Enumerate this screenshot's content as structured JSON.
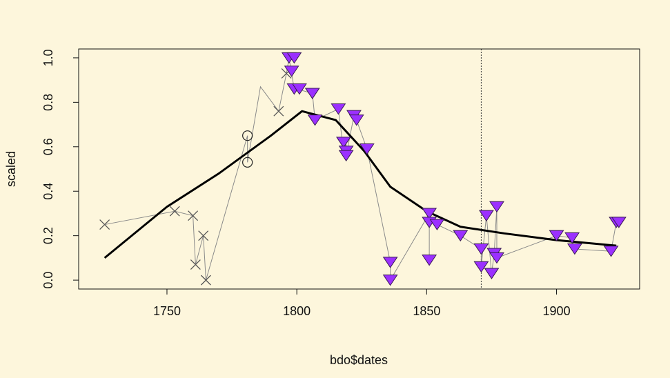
{
  "colors": {
    "background": "#fdf6dc",
    "purple_fill": "#9b30ff",
    "purple_stroke": "#3a1a55",
    "marker_gray": "#555555",
    "thin_line": "#8a8a8a",
    "smooth_line": "#000000"
  },
  "chart_data": {
    "type": "scatter",
    "xlabel": "bdo$dates",
    "ylabel": "scaled",
    "xlim": [
      1716,
      1932
    ],
    "ylim": [
      -0.04,
      1.04
    ],
    "x_ticks": [
      "1750",
      "1800",
      "1850",
      "1900"
    ],
    "x_tick_values": [
      1750,
      1800,
      1850,
      1900
    ],
    "y_ticks": [
      "0.0",
      "0.2",
      "0.4",
      "0.6",
      "0.8",
      "1.0"
    ],
    "y_tick_values": [
      0,
      0.2,
      0.4,
      0.6,
      0.8,
      1.0
    ],
    "grid": false,
    "vline_x": 1871,
    "thin_line_path": [
      [
        1726,
        0.25
      ],
      [
        1753,
        0.31
      ],
      [
        1760,
        0.29
      ],
      [
        1761,
        0.07
      ],
      [
        1764,
        0.2
      ],
      [
        1765,
        0.0
      ],
      [
        1781,
        0.65
      ],
      [
        1781,
        0.53
      ],
      [
        1786,
        0.87
      ],
      [
        1793,
        0.76
      ],
      [
        1796,
        0.93
      ],
      [
        1797,
        1.0
      ],
      [
        1799,
        0.86
      ],
      [
        1800,
        0.86
      ],
      [
        1806,
        0.84
      ],
      [
        1807,
        0.72
      ],
      [
        1816,
        0.77
      ],
      [
        1818,
        0.58
      ],
      [
        1819,
        0.61
      ],
      [
        1819,
        0.56
      ],
      [
        1822,
        0.74
      ],
      [
        1823,
        0.72
      ],
      [
        1827,
        0.59
      ],
      [
        1836,
        0.08
      ],
      [
        1836,
        0.0
      ],
      [
        1851,
        0.3
      ],
      [
        1851,
        0.09
      ],
      [
        1851,
        0.26
      ],
      [
        1854,
        0.25
      ],
      [
        1863,
        0.2
      ],
      [
        1871,
        0.14
      ],
      [
        1871,
        0.06
      ],
      [
        1873,
        0.29
      ],
      [
        1875,
        0.03
      ],
      [
        1876,
        0.12
      ],
      [
        1877,
        0.33
      ],
      [
        1877,
        0.1
      ],
      [
        1900,
        0.2
      ],
      [
        1906,
        0.19
      ],
      [
        1907,
        0.14
      ],
      [
        1921,
        0.13
      ],
      [
        1923,
        0.26
      ]
    ],
    "smooth_line": [
      [
        1726,
        0.1
      ],
      [
        1750,
        0.33
      ],
      [
        1770,
        0.48
      ],
      [
        1790,
        0.65
      ],
      [
        1802,
        0.76
      ],
      [
        1815,
        0.72
      ],
      [
        1826,
        0.58
      ],
      [
        1836,
        0.42
      ],
      [
        1850,
        0.31
      ],
      [
        1863,
        0.24
      ],
      [
        1880,
        0.21
      ],
      [
        1900,
        0.18
      ],
      [
        1923,
        0.155
      ]
    ],
    "series": [
      {
        "marker": "x",
        "points": [
          [
            1726,
            0.25
          ],
          [
            1753,
            0.31
          ],
          [
            1760,
            0.29
          ],
          [
            1761,
            0.07
          ],
          [
            1764,
            0.2
          ],
          [
            1765,
            0.0
          ],
          [
            1793,
            0.76
          ],
          [
            1796,
            0.93
          ]
        ]
      },
      {
        "marker": "circle",
        "points": [
          [
            1781,
            0.65
          ],
          [
            1781,
            0.53
          ]
        ]
      },
      {
        "marker": "triangle-down",
        "points": [
          [
            1797,
            1.0
          ],
          [
            1799,
            1.0
          ],
          [
            1798,
            0.94
          ],
          [
            1799,
            0.86
          ],
          [
            1801,
            0.86
          ],
          [
            1806,
            0.84
          ],
          [
            1807,
            0.72
          ],
          [
            1816,
            0.77
          ],
          [
            1818,
            0.62
          ],
          [
            1819,
            0.58
          ],
          [
            1819,
            0.56
          ],
          [
            1822,
            0.74
          ],
          [
            1823,
            0.72
          ],
          [
            1827,
            0.59
          ],
          [
            1836,
            0.08
          ],
          [
            1836,
            0.0
          ],
          [
            1851,
            0.3
          ],
          [
            1851,
            0.26
          ],
          [
            1851,
            0.09
          ],
          [
            1854,
            0.25
          ],
          [
            1863,
            0.2
          ],
          [
            1871,
            0.14
          ],
          [
            1871,
            0.06
          ],
          [
            1873,
            0.29
          ],
          [
            1875,
            0.03
          ],
          [
            1876,
            0.12
          ],
          [
            1877,
            0.33
          ],
          [
            1877,
            0.1
          ],
          [
            1900,
            0.2
          ],
          [
            1906,
            0.19
          ],
          [
            1907,
            0.14
          ],
          [
            1921,
            0.13
          ],
          [
            1923,
            0.26
          ],
          [
            1924,
            0.26
          ]
        ]
      }
    ]
  }
}
